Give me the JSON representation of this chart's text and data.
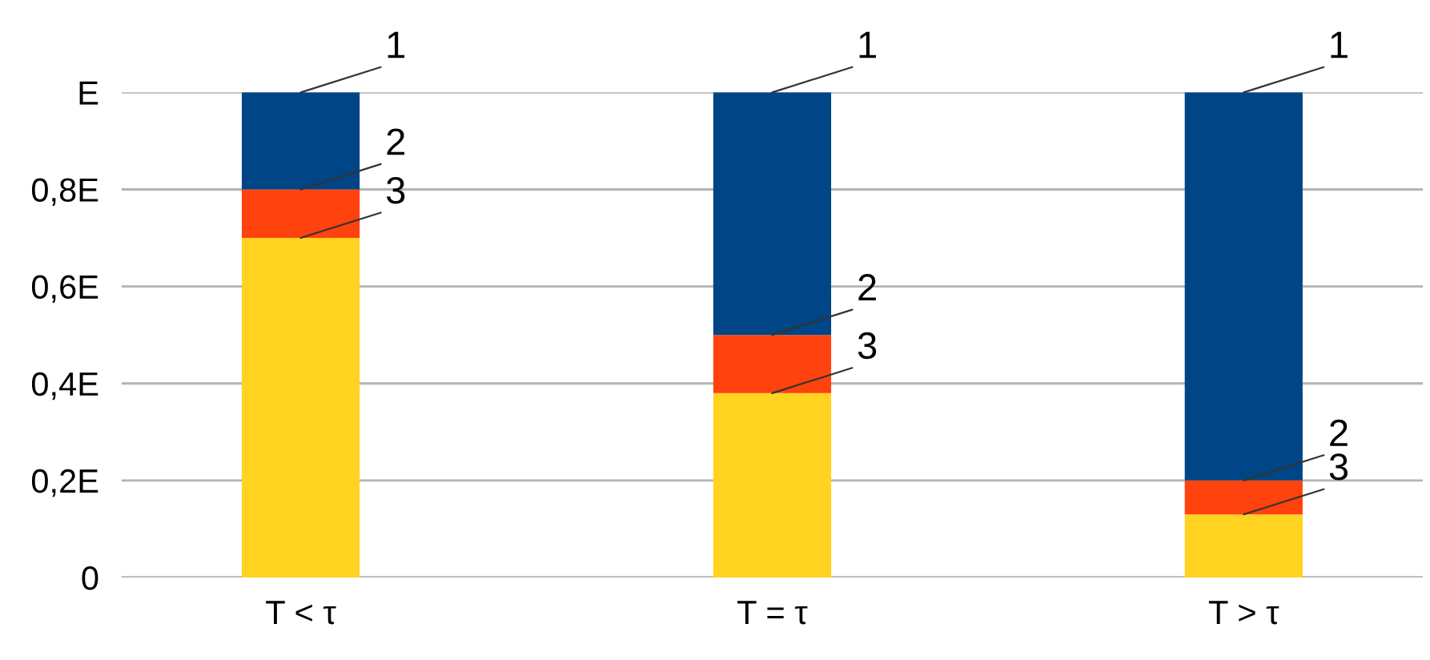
{
  "chart_data": {
    "type": "bar",
    "stacked": true,
    "categories": [
      "T < τ",
      "T = τ",
      "T > τ"
    ],
    "series": [
      {
        "color": "#ffd320",
        "values": [
          0.7,
          0.38,
          0.13
        ]
      },
      {
        "color": "#ff420e",
        "values": [
          0.1,
          0.12,
          0.07
        ]
      },
      {
        "color": "#004586",
        "values": [
          0.2,
          0.5,
          0.8
        ]
      }
    ],
    "ylim": [
      0,
      1
    ],
    "yticks": [
      0,
      {
        "value": 0.2,
        "label": "0,2E"
      },
      {
        "value": 0.4,
        "label": "0,4E"
      },
      {
        "value": 0.6,
        "label": "0,6E"
      },
      {
        "value": 0.8,
        "label": "0,8E"
      },
      {
        "value": 1,
        "label": "E"
      }
    ],
    "grid": "y",
    "annotations": [
      {
        "text": "1",
        "x": "T < τ",
        "y": 1.0
      },
      {
        "text": "2",
        "x": "T < τ",
        "y": 0.8
      },
      {
        "text": "3",
        "x": "T < τ",
        "y": 0.7
      },
      {
        "text": "1",
        "x": "T = τ",
        "y": 1.0
      },
      {
        "text": "2",
        "x": "T = τ",
        "y": 0.5
      },
      {
        "text": "3",
        "x": "T = τ",
        "y": 0.38
      },
      {
        "text": "1",
        "x": "T > τ",
        "y": 1.0
      },
      {
        "text": "2",
        "x": "T > τ",
        "y": 0.2
      },
      {
        "text": "3",
        "x": "T > τ",
        "y": 0.13
      }
    ]
  }
}
